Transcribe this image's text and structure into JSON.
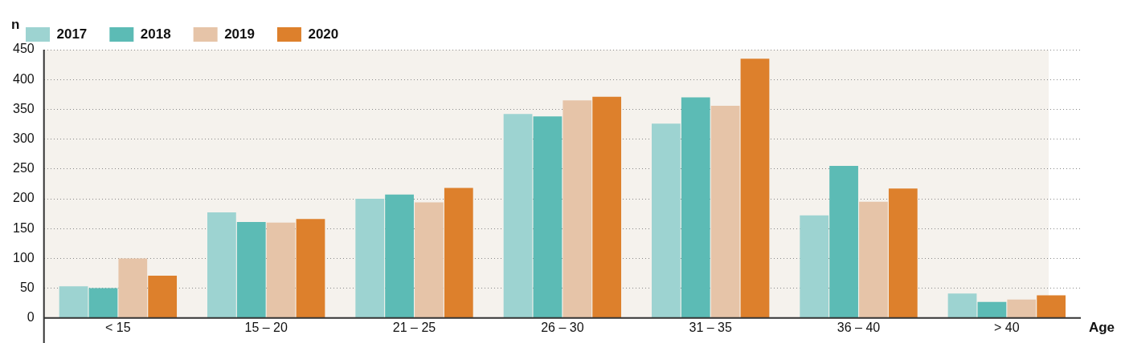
{
  "chart_data": {
    "type": "bar",
    "xlabel": "Age",
    "ylabel": "n",
    "categories": [
      "< 15",
      "15 – 20",
      "21 – 25",
      "26 – 30",
      "31 – 35",
      "36 – 40",
      "> 40"
    ],
    "series": [
      {
        "name": "2017",
        "color": "#9dd3d1",
        "values": [
          53,
          177,
          200,
          342,
          326,
          172,
          41
        ]
      },
      {
        "name": "2018",
        "color": "#5cbbb5",
        "values": [
          50,
          161,
          207,
          338,
          370,
          255,
          27
        ]
      },
      {
        "name": "2019",
        "color": "#e6c4a8",
        "values": [
          100,
          160,
          194,
          365,
          356,
          195,
          31
        ]
      },
      {
        "name": "2020",
        "color": "#dd802c",
        "values": [
          71,
          166,
          218,
          371,
          435,
          217,
          38
        ]
      }
    ],
    "ylim": [
      0,
      450
    ],
    "yticks": [
      0,
      50,
      100,
      150,
      200,
      250,
      300,
      350,
      400,
      450
    ],
    "grid": "y",
    "legend": "top left"
  }
}
